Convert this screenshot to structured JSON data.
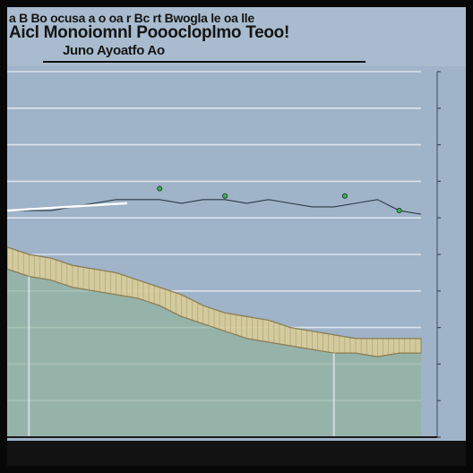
{
  "header": {
    "title_line_1": "a B Bo ocusa a  o  oa r Bc rt  Bwogla le oa lle",
    "title_line_2": "Aicl Monoiomnl Pooocloplmo Teoo!",
    "title_line_3": "Juno  Ayoatfo Ao"
  },
  "chart_data": {
    "type": "area",
    "title": "",
    "xlabel": "",
    "ylabel": "",
    "x": [
      0,
      1,
      2,
      3,
      4,
      5,
      6,
      7,
      8,
      9,
      10,
      11,
      12,
      13,
      14,
      15,
      16,
      17,
      18,
      19
    ],
    "xlim": [
      0,
      19
    ],
    "ylim": [
      0,
      10
    ],
    "grid": true,
    "colors": {
      "panel": "#9fb3c9",
      "grid": "#e6edf4",
      "area_fill": "#93b49d",
      "band_fill": "#d9cd99",
      "band_stroke": "#8a7d52",
      "line": "#2b3a44",
      "marker": "#39b24a"
    },
    "series": [
      {
        "values": [
          4.6,
          4.4,
          4.3,
          4.1,
          4.0,
          3.9,
          3.8,
          3.6,
          3.3,
          3.1,
          2.9,
          2.7,
          2.6,
          2.5,
          2.4,
          2.3,
          2.3,
          2.2,
          2.3,
          2.3
        ]
      },
      {
        "values": [
          5.2,
          5.0,
          4.9,
          4.7,
          4.6,
          4.5,
          4.3,
          4.1,
          3.9,
          3.6,
          3.4,
          3.3,
          3.2,
          3.0,
          2.9,
          2.8,
          2.7,
          2.7,
          2.7,
          2.7
        ]
      },
      {
        "values": [
          6.2,
          6.2,
          6.2,
          6.3,
          6.4,
          6.5,
          6.5,
          6.5,
          6.4,
          6.5,
          6.5,
          6.4,
          6.5,
          6.4,
          6.3,
          6.3,
          6.4,
          6.5,
          6.2,
          6.1
        ]
      }
    ],
    "markers": [
      {
        "x": 7,
        "y": 6.8
      },
      {
        "x": 10,
        "y": 6.6
      },
      {
        "x": 15.5,
        "y": 6.6
      },
      {
        "x": 18,
        "y": 6.2
      }
    ]
  }
}
